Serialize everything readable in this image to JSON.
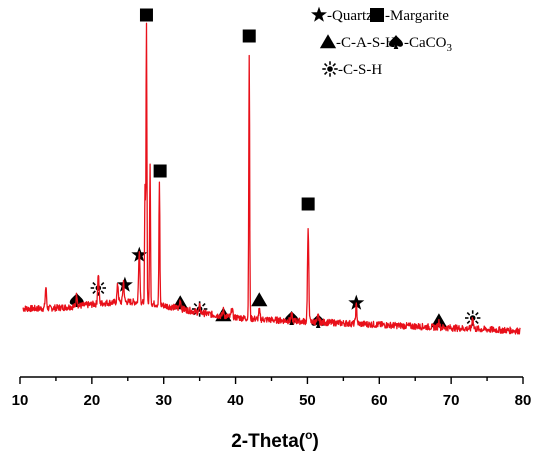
{
  "chart_data": {
    "type": "line",
    "title": "",
    "xlabel": "2-Theta(",
    "xlabel_sup": "o",
    "xlabel_end": ")",
    "ylabel": "",
    "xlim": [
      10,
      80
    ],
    "ylim": [
      0,
      100
    ],
    "x_ticks": [
      "10",
      "20",
      "30",
      "40",
      "50",
      "60",
      "70",
      "80"
    ],
    "y_ticks_visible": false,
    "grid": false,
    "legend_position": "top-right",
    "line_color": "#e8101a",
    "legend": [
      {
        "marker": "star",
        "label": "-Quartz"
      },
      {
        "marker": "square",
        "label": "-Margarite"
      },
      {
        "marker": "triangle",
        "label": "-C-A-S-H"
      },
      {
        "marker": "spade",
        "label": "-CaCO",
        "sub": "3"
      },
      {
        "marker": "sun",
        "label": "-C-S-H"
      }
    ],
    "series": [
      {
        "peaks": [
          {
            "x": 13.6,
            "y": 7
          },
          {
            "x": 17.9,
            "y": 4
          },
          {
            "x": 20.9,
            "y": 10
          },
          {
            "x": 23.6,
            "y": 6
          },
          {
            "x": 24.4,
            "y": 7
          },
          {
            "x": 26.6,
            "y": 18
          },
          {
            "x": 27.4,
            "y": 38
          },
          {
            "x": 27.6,
            "y": 94
          },
          {
            "x": 28.1,
            "y": 46
          },
          {
            "x": 29.4,
            "y": 40
          },
          {
            "x": 32.3,
            "y": 3
          },
          {
            "x": 35.0,
            "y": 2
          },
          {
            "x": 38.3,
            "y": 2
          },
          {
            "x": 39.5,
            "y": 3
          },
          {
            "x": 41.9,
            "y": 88
          },
          {
            "x": 43.3,
            "y": 3
          },
          {
            "x": 47.8,
            "y": 2
          },
          {
            "x": 50.1,
            "y": 30
          },
          {
            "x": 51.5,
            "y": 2
          },
          {
            "x": 56.8,
            "y": 6
          },
          {
            "x": 68.3,
            "y": 2
          },
          {
            "x": 73.0,
            "y": 4
          }
        ]
      }
    ],
    "annotations": [
      {
        "marker": "square",
        "x": 27.6,
        "y": 107
      },
      {
        "marker": "square",
        "x": 29.5,
        "y": 55
      },
      {
        "marker": "square",
        "x": 41.9,
        "y": 100
      },
      {
        "marker": "square",
        "x": 50.1,
        "y": 44
      },
      {
        "marker": "star",
        "x": 26.6,
        "y": 27
      },
      {
        "marker": "star",
        "x": 24.6,
        "y": 17
      },
      {
        "marker": "star",
        "x": 56.8,
        "y": 11
      },
      {
        "marker": "triangle",
        "x": 32.3,
        "y": 11
      },
      {
        "marker": "triangle",
        "x": 38.3,
        "y": 7
      },
      {
        "marker": "triangle",
        "x": 43.3,
        "y": 12
      },
      {
        "marker": "triangle",
        "x": 68.3,
        "y": 5
      },
      {
        "marker": "spade",
        "x": 17.9,
        "y": 12
      },
      {
        "marker": "spade",
        "x": 47.8,
        "y": 6
      },
      {
        "marker": "spade",
        "x": 51.5,
        "y": 5
      },
      {
        "marker": "sun",
        "x": 20.9,
        "y": 16
      },
      {
        "marker": "sun",
        "x": 35.0,
        "y": 9
      },
      {
        "marker": "sun",
        "x": 73.0,
        "y": 6
      }
    ]
  }
}
